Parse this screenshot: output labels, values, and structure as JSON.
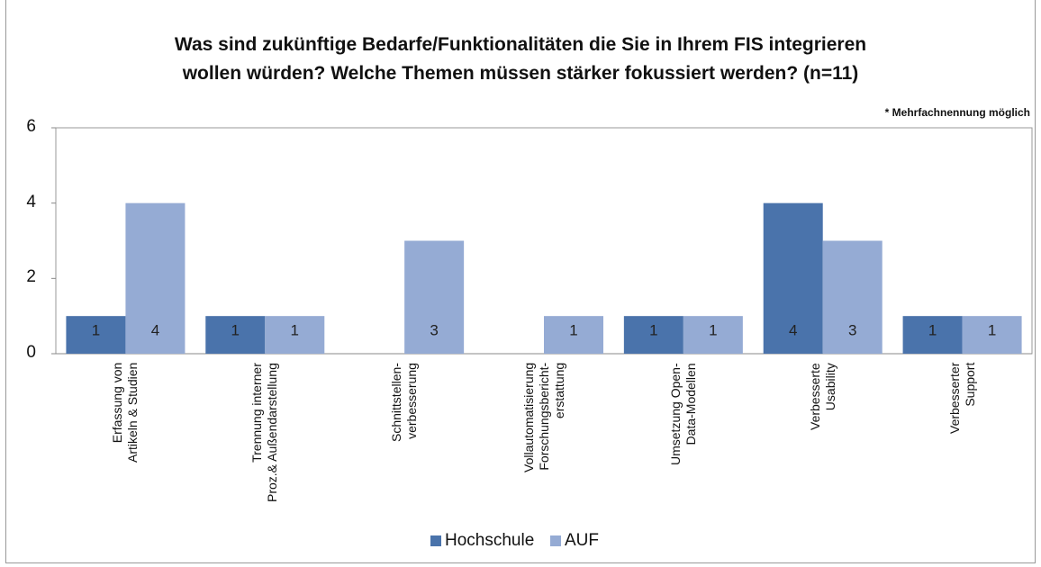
{
  "chart_data": {
    "type": "bar",
    "title": "Was sind zukünftige Bedarfe/Funktionalitäten die Sie in Ihrem FIS integrieren\nwollen würden? Welche Themen müssen stärker fokussiert werden? (n=11)",
    "annotation": "* Mehrfachnennung möglich",
    "categories": [
      "Erfassung von\nArtikeln & Studien",
      "Trennung interner\nProz.& Außendarstellung",
      "Schnittstellen-\nverbesserung",
      "Vollautomatisierung\nForschungsbericht-\nerstattung",
      "Umsetzung Open-\nData-Modellen",
      "Verbesserte\nUsability",
      "Verbesserter\nSupport"
    ],
    "series": [
      {
        "name": "Hochschule",
        "color": "#4a73ab",
        "values": [
          1,
          1,
          null,
          null,
          1,
          4,
          1
        ]
      },
      {
        "name": "AUF",
        "color": "#95abd4",
        "values": [
          4,
          1,
          3,
          1,
          1,
          3,
          1
        ]
      }
    ],
    "ylim": [
      0,
      6
    ],
    "yticks": [
      0,
      2,
      4,
      6
    ],
    "grid": false,
    "legend": "bottom"
  }
}
